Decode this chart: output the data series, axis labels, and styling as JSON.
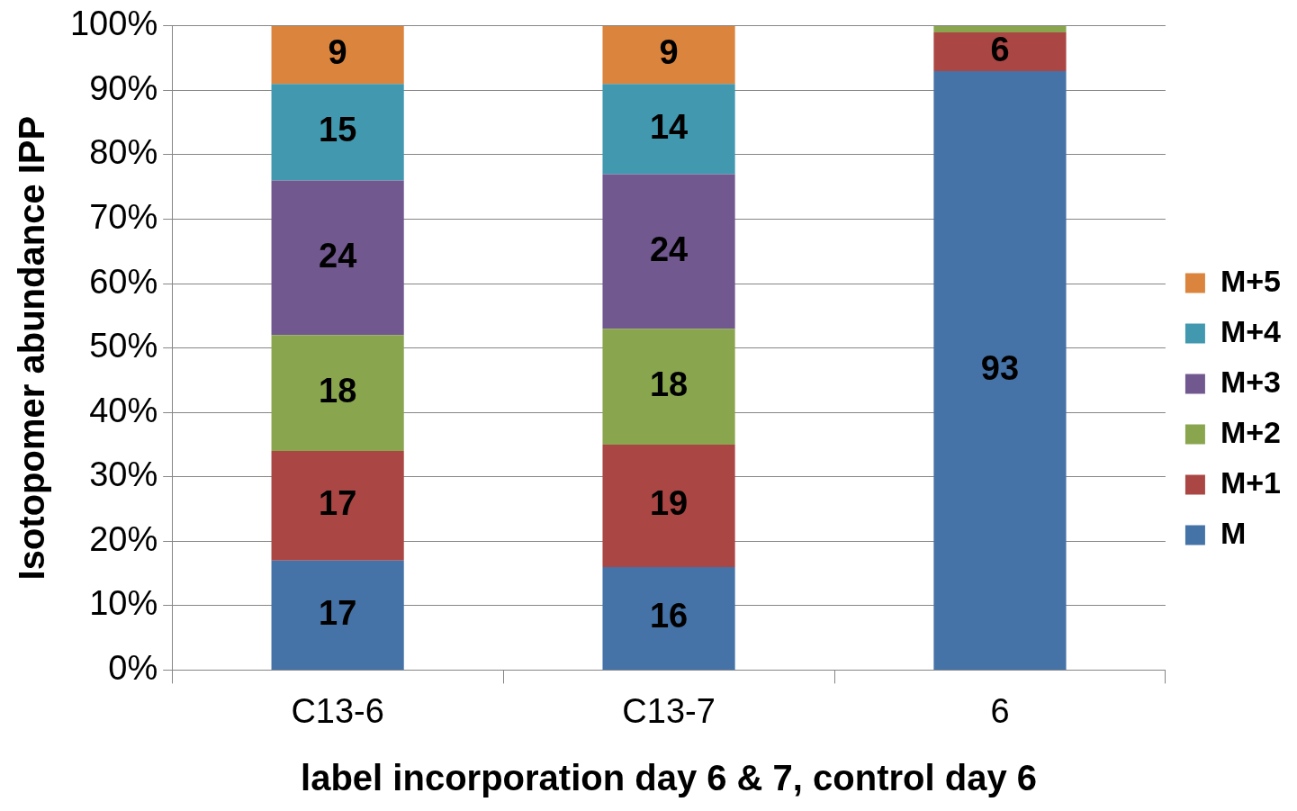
{
  "chart_data": {
    "type": "bar",
    "stacked": true,
    "xlabel": "label incorporation day 6 & 7, control day 6",
    "ylabel": "Isotopomer abundance IPP",
    "categories": [
      "C13-6",
      "C13-7",
      "6"
    ],
    "series": [
      {
        "name": "M",
        "color": "#4572a7",
        "values": [
          17,
          16,
          93
        ],
        "value_labels": [
          "17",
          "16",
          "93"
        ]
      },
      {
        "name": "M+1",
        "color": "#aa4643",
        "values": [
          17,
          19,
          6
        ],
        "value_labels": [
          "17",
          "19",
          "6"
        ]
      },
      {
        "name": "M+2",
        "color": "#89a54e",
        "values": [
          18,
          18,
          1
        ],
        "value_labels": [
          "18",
          "18",
          null
        ]
      },
      {
        "name": "M+3",
        "color": "#71588f",
        "values": [
          24,
          24,
          0
        ],
        "value_labels": [
          "24",
          "24",
          null
        ]
      },
      {
        "name": "M+4",
        "color": "#4198af",
        "values": [
          15,
          14,
          0
        ],
        "value_labels": [
          "15",
          "14",
          null
        ]
      },
      {
        "name": "M+5",
        "color": "#db843d",
        "values": [
          9,
          9,
          0
        ],
        "value_labels": [
          "9",
          "9",
          null
        ]
      }
    ],
    "ylim": [
      0,
      100
    ],
    "yticks": [
      {
        "value": 0,
        "label": "0%"
      },
      {
        "value": 10,
        "label": "10%"
      },
      {
        "value": 20,
        "label": "20%"
      },
      {
        "value": 30,
        "label": "30%"
      },
      {
        "value": 40,
        "label": "40%"
      },
      {
        "value": 50,
        "label": "50%"
      },
      {
        "value": 60,
        "label": "60%"
      },
      {
        "value": 70,
        "label": "70%"
      },
      {
        "value": 80,
        "label": "80%"
      },
      {
        "value": 90,
        "label": "90%"
      },
      {
        "value": 100,
        "label": "100%"
      }
    ],
    "grid": "y",
    "legend": "right"
  }
}
